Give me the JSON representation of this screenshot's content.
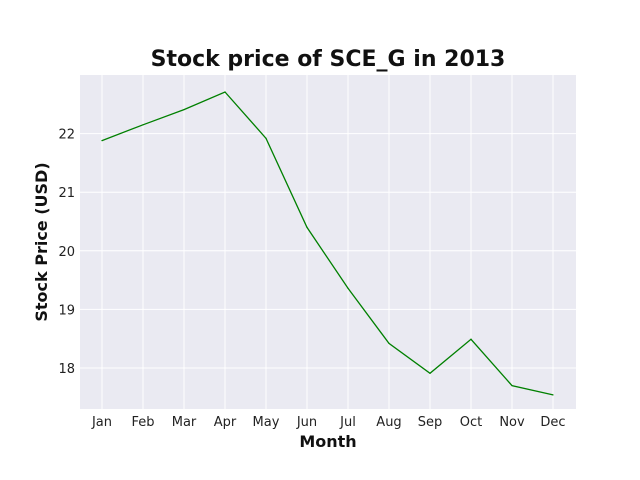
{
  "chart_data": {
    "type": "line",
    "title": "Stock price of SCE_G in 2013",
    "xlabel": "Month",
    "ylabel": "Stock Price (USD)",
    "categories": [
      "Jan",
      "Feb",
      "Mar",
      "Apr",
      "May",
      "Jun",
      "Jul",
      "Aug",
      "Sep",
      "Oct",
      "Nov",
      "Dec"
    ],
    "series": [
      {
        "color": "#008000",
        "values": [
          21.88,
          22.15,
          22.41,
          22.71,
          21.92,
          20.4,
          19.36,
          18.42,
          17.91,
          18.49,
          17.7,
          17.54
        ]
      }
    ],
    "ylim": [
      17.3,
      23.0
    ],
    "yticks": [
      18,
      19,
      20,
      21,
      22
    ],
    "grid": true,
    "legend": "none",
    "colors": {
      "plot_background": "#eaeaf2",
      "grid": "#ffffff",
      "line": "#008000"
    }
  }
}
